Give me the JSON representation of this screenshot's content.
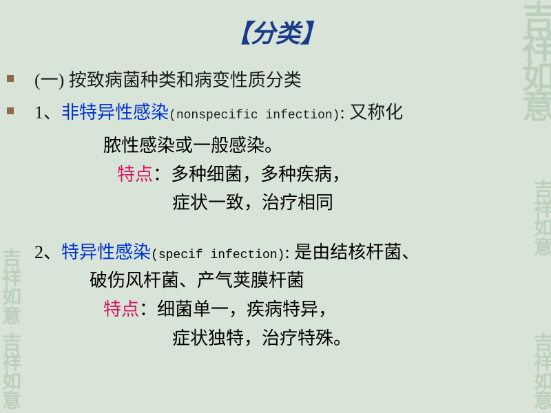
{
  "title": "【分类】",
  "heading": "(一) 按致病菌种类和病变性质分类",
  "item1": {
    "number": "1、",
    "term": "非特异性感染",
    "english": "(nonspecific infection)",
    "desc_start": ": 又称化",
    "desc_line2": "脓性感染或一般感染。",
    "char_label": "特点",
    "char_line1": "：多种细菌，多种疾病，",
    "char_line2": "症状一致，治疗相同"
  },
  "item2": {
    "number": "2、",
    "term": "特异性感染",
    "english": "(specif infection)",
    "desc_start": ": 是由结核杆菌、",
    "desc_line2": "破伤风杆菌、产气荚膜杆菌",
    "char_label": "特点",
    "char_line1": "：细菌单一，疾病特异，",
    "char_line2": "症状独特，治疗特殊。"
  },
  "decorations": {
    "seal_text": "吉祥如意"
  },
  "colors": {
    "background": "#d9e4d9",
    "title_color": "#1a3a8a",
    "text_color": "#1a1a1a",
    "highlight_blue": "#0033cc",
    "highlight_red": "#d01860",
    "bullet_color": "#8b6a4a",
    "seal_color": "#a8c4a8"
  },
  "typography": {
    "title_fontsize": 36,
    "body_fontsize": 26,
    "english_fontsize": 18,
    "font_family": "KaiTi"
  }
}
